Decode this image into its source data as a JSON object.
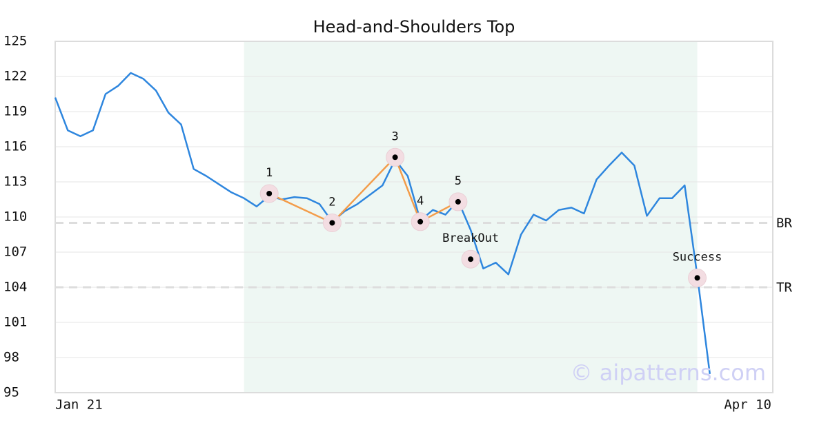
{
  "chart_data": {
    "type": "line",
    "title": "Head-and-Shoulders Top",
    "categories": [
      "Jan 21",
      null,
      null,
      null,
      null,
      null,
      null,
      null,
      null,
      null,
      null,
      null,
      null,
      null,
      null,
      null,
      null,
      null,
      null,
      null,
      null,
      null,
      null,
      null,
      null,
      null,
      null,
      null,
      null,
      null,
      null,
      null,
      null,
      null,
      null,
      null,
      null,
      null,
      null,
      null,
      null,
      null,
      null,
      null,
      null,
      null,
      null,
      null,
      null,
      null,
      null,
      null,
      null,
      null,
      null,
      null,
      null,
      "Apr 10"
    ],
    "series": [
      {
        "color": "#2e86de",
        "values": [
          120.2,
          117.4,
          116.9,
          117.4,
          120.5,
          121.2,
          122.3,
          121.8,
          120.8,
          118.9,
          117.9,
          114.1,
          113.5,
          112.8,
          112.1,
          111.6,
          110.9,
          111.8,
          111.5,
          111.7,
          111.6,
          111.1,
          109.6,
          110.5,
          111.1,
          111.9,
          112.7,
          114.9,
          113.5,
          109.7,
          110.6,
          110.2,
          111.4,
          108.9,
          105.6,
          106.1,
          105.1,
          108.5,
          110.2,
          109.7,
          110.6,
          110.8,
          110.3,
          113.2,
          114.4,
          115.5,
          114.4,
          110.1,
          111.6,
          111.6,
          112.7,
          105.0,
          96.6,
          null,
          null,
          null,
          null,
          null
        ]
      }
    ],
    "ylim": [
      95,
      125
    ],
    "yticks": [
      95,
      98,
      101,
      104,
      107,
      110,
      113,
      116,
      119,
      122,
      125
    ],
    "grid": true,
    "highlight": {
      "from": 15,
      "to": 51,
      "color": "#eef7f3"
    },
    "pattern": {
      "color": "#f39c4a",
      "points": [
        {
          "label": "1",
          "index": 17,
          "value": 112.0
        },
        {
          "label": "2",
          "index": 22,
          "value": 109.5
        },
        {
          "label": "3",
          "index": 27,
          "value": 115.1
        },
        {
          "label": "4",
          "index": 29,
          "value": 109.6
        },
        {
          "label": "5",
          "index": 32,
          "value": 111.3
        }
      ]
    },
    "events": [
      {
        "label": "BreakOut",
        "index": 33,
        "value": 106.4
      },
      {
        "label": "Success",
        "index": 51,
        "value": 104.8
      }
    ],
    "levels": [
      {
        "label": "BR",
        "value": 109.5
      },
      {
        "label": "TR",
        "value": 104.0
      }
    ],
    "watermark": "© aipatterns.com"
  }
}
